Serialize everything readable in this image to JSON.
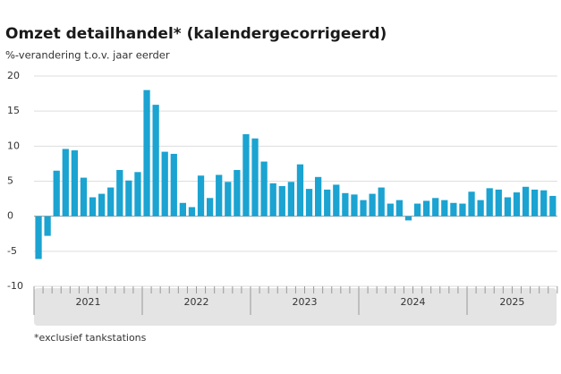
{
  "chart_data": {
    "type": "bar",
    "title": "Omzet detailhandel* (kalendergecorrigeerd)",
    "subtitle": "%-verandering t.o.v. jaar eerder",
    "footnote": "*exclusief tankstations",
    "year_labels": [
      "2021",
      "2022",
      "2023",
      "2024",
      "2025"
    ],
    "categories": [
      null,
      null,
      null,
      null,
      null,
      null,
      null,
      null,
      null,
      null,
      null,
      null,
      null,
      null,
      null,
      null,
      null,
      null,
      null,
      null,
      null,
      null,
      null,
      null,
      null,
      null,
      null,
      null,
      null,
      null,
      null,
      null,
      null,
      null,
      null,
      null,
      null,
      null,
      null,
      null,
      null,
      null,
      null,
      null,
      null,
      null,
      null,
      null,
      null,
      null,
      null,
      null,
      null,
      null,
      null,
      null,
      null,
      null
    ],
    "values": [
      -6.1,
      -2.8,
      6.5,
      9.6,
      9.4,
      5.5,
      2.7,
      3.2,
      4.1,
      6.6,
      5.1,
      6.3,
      18.0,
      15.9,
      9.2,
      8.9,
      1.9,
      1.3,
      5.8,
      2.6,
      5.9,
      4.9,
      6.6,
      11.7,
      11.1,
      7.8,
      4.7,
      4.3,
      4.9,
      7.4,
      3.9,
      5.6,
      3.8,
      4.5,
      3.3,
      3.1,
      2.3,
      3.2,
      4.1,
      1.8,
      2.3,
      -0.6,
      1.8,
      2.2,
      2.6,
      2.3,
      1.9,
      1.8,
      3.5,
      2.3,
      4.0,
      3.8,
      2.7,
      3.4,
      4.2,
      3.8,
      3.7,
      2.9
    ],
    "color": "#1ba3d1",
    "ylim": [
      -10,
      20
    ],
    "yticks": [
      20,
      15,
      10,
      5,
      0,
      -5,
      -10
    ],
    "grid": true
  }
}
